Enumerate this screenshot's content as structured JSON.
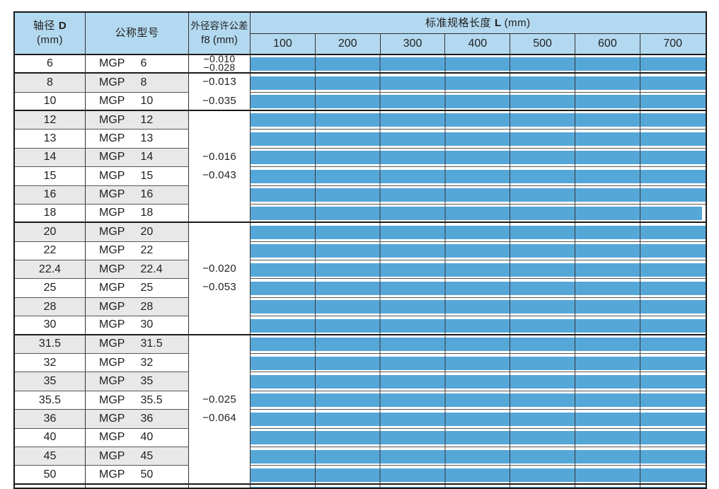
{
  "colors": {
    "header_blue": "#b3d9f0",
    "bar_blue": "#55a7d8",
    "stripe_gray": "#e8e8e8",
    "grid_dark": "#1a1a1a"
  },
  "header": {
    "diameter_label": "轴径",
    "diameter_letter": "D",
    "diameter_unit": "(mm)",
    "model_label": "公称型号",
    "tolerance_line1": "外径容许公差",
    "tolerance_line2": "f8 (mm)",
    "length_label": "标准规格长度",
    "length_letter": "L",
    "length_unit": "(mm)",
    "length_ticks": [
      "100",
      "200",
      "300",
      "400",
      "500",
      "600",
      "700"
    ]
  },
  "model_prefix": "MGP",
  "tolerance_groups": [
    {
      "upper": "−0.010",
      "lower": "−0.028",
      "row_span": 1,
      "compact": true
    },
    {
      "upper": "−0.013",
      "lower": "−0.035",
      "row_span": 2,
      "compact": false
    },
    {
      "upper": "−0.016",
      "lower": "−0.043",
      "row_span": 6,
      "compact": false
    },
    {
      "upper": "−0.020",
      "lower": "−0.053",
      "row_span": 6,
      "compact": false
    },
    {
      "upper": "−0.025",
      "lower": "−0.064",
      "row_span": 8,
      "compact": false
    }
  ],
  "rows": [
    {
      "diameter": "6",
      "model_size": "6",
      "bar_end_mm": 700
    },
    {
      "diameter": "8",
      "model_size": "8",
      "bar_end_mm": 700
    },
    {
      "diameter": "10",
      "model_size": "10",
      "bar_end_mm": 700
    },
    {
      "diameter": "12",
      "model_size": "12",
      "bar_end_mm": 700
    },
    {
      "diameter": "13",
      "model_size": "13",
      "bar_end_mm": 700
    },
    {
      "diameter": "14",
      "model_size": "14",
      "bar_end_mm": 700
    },
    {
      "diameter": "15",
      "model_size": "15",
      "bar_end_mm": 700
    },
    {
      "diameter": "16",
      "model_size": "16",
      "bar_end_mm": 700
    },
    {
      "diameter": "18",
      "model_size": "18",
      "bar_end_mm": 695
    },
    {
      "diameter": "20",
      "model_size": "20",
      "bar_end_mm": 700
    },
    {
      "diameter": "22",
      "model_size": "22",
      "bar_end_mm": 700
    },
    {
      "diameter": "22.4",
      "model_size": "22.4",
      "bar_end_mm": 700
    },
    {
      "diameter": "25",
      "model_size": "25",
      "bar_end_mm": 700
    },
    {
      "diameter": "28",
      "model_size": "28",
      "bar_end_mm": 700
    },
    {
      "diameter": "30",
      "model_size": "30",
      "bar_end_mm": 700
    },
    {
      "diameter": "31.5",
      "model_size": "31.5",
      "bar_end_mm": 700
    },
    {
      "diameter": "32",
      "model_size": "32",
      "bar_end_mm": 700
    },
    {
      "diameter": "35",
      "model_size": "35",
      "bar_end_mm": 700
    },
    {
      "diameter": "35.5",
      "model_size": "35.5",
      "bar_end_mm": 700
    },
    {
      "diameter": "36",
      "model_size": "36",
      "bar_end_mm": 700
    },
    {
      "diameter": "40",
      "model_size": "40",
      "bar_end_mm": 700
    },
    {
      "diameter": "45",
      "model_size": "45",
      "bar_end_mm": 700
    },
    {
      "diameter": "50",
      "model_size": "50",
      "bar_end_mm": 700
    }
  ],
  "partial_bottom_row": {
    "bar_end_mm": 700
  }
}
